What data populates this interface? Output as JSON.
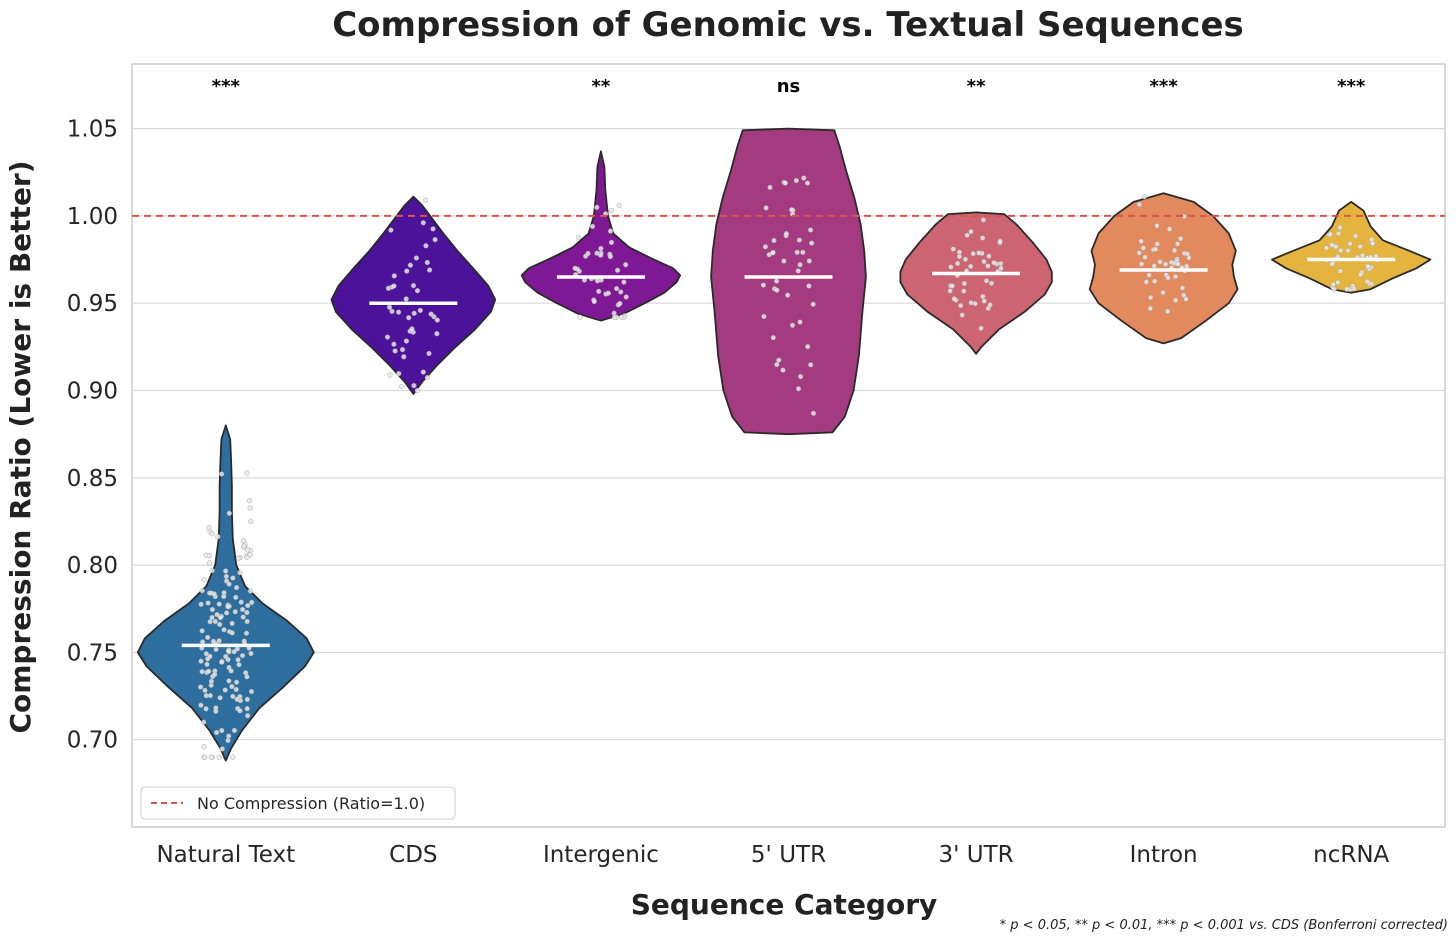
{
  "chart_data": {
    "type": "violin",
    "title": "Compression of Genomic vs. Textual Sequences",
    "xlabel": "Sequence Category",
    "ylabel": "Compression Ratio (Lower is Better)",
    "ylim": [
      0.65,
      1.087
    ],
    "yticks": [
      "0.70",
      "0.75",
      "0.80",
      "0.85",
      "0.90",
      "0.95",
      "1.00",
      "1.05"
    ],
    "grid": "horizontal",
    "categories": [
      "Natural Text",
      "CDS",
      "Intergenic",
      "5' UTR",
      "3' UTR",
      "Intron",
      "ncRNA"
    ],
    "colors": [
      "#2e6e9e",
      "#4d129a",
      "#7f1894",
      "#a43a80",
      "#cd6472",
      "#e2895d",
      "#e5b43f"
    ],
    "medians": [
      0.754,
      0.95,
      0.965,
      0.965,
      0.967,
      0.969,
      0.975
    ],
    "ranges": [
      [
        0.688,
        0.88
      ],
      [
        0.898,
        1.011
      ],
      [
        0.94,
        1.037
      ],
      [
        0.875,
        1.05
      ],
      [
        0.921,
        1.002
      ],
      [
        0.927,
        1.013
      ],
      [
        0.956,
        1.008
      ]
    ],
    "significance": [
      "***",
      "",
      "**",
      "ns",
      "**",
      "***",
      "***"
    ],
    "reference_line": {
      "y": 1.0,
      "color": "#d9534f",
      "style": "dashed"
    },
    "legend": {
      "label": "No Compression (Ratio=1.0)",
      "position": "lower-left"
    },
    "footnote": "* p < 0.05, ** p < 0.01, *** p < 0.001 vs. CDS (Bonferroni corrected)"
  }
}
